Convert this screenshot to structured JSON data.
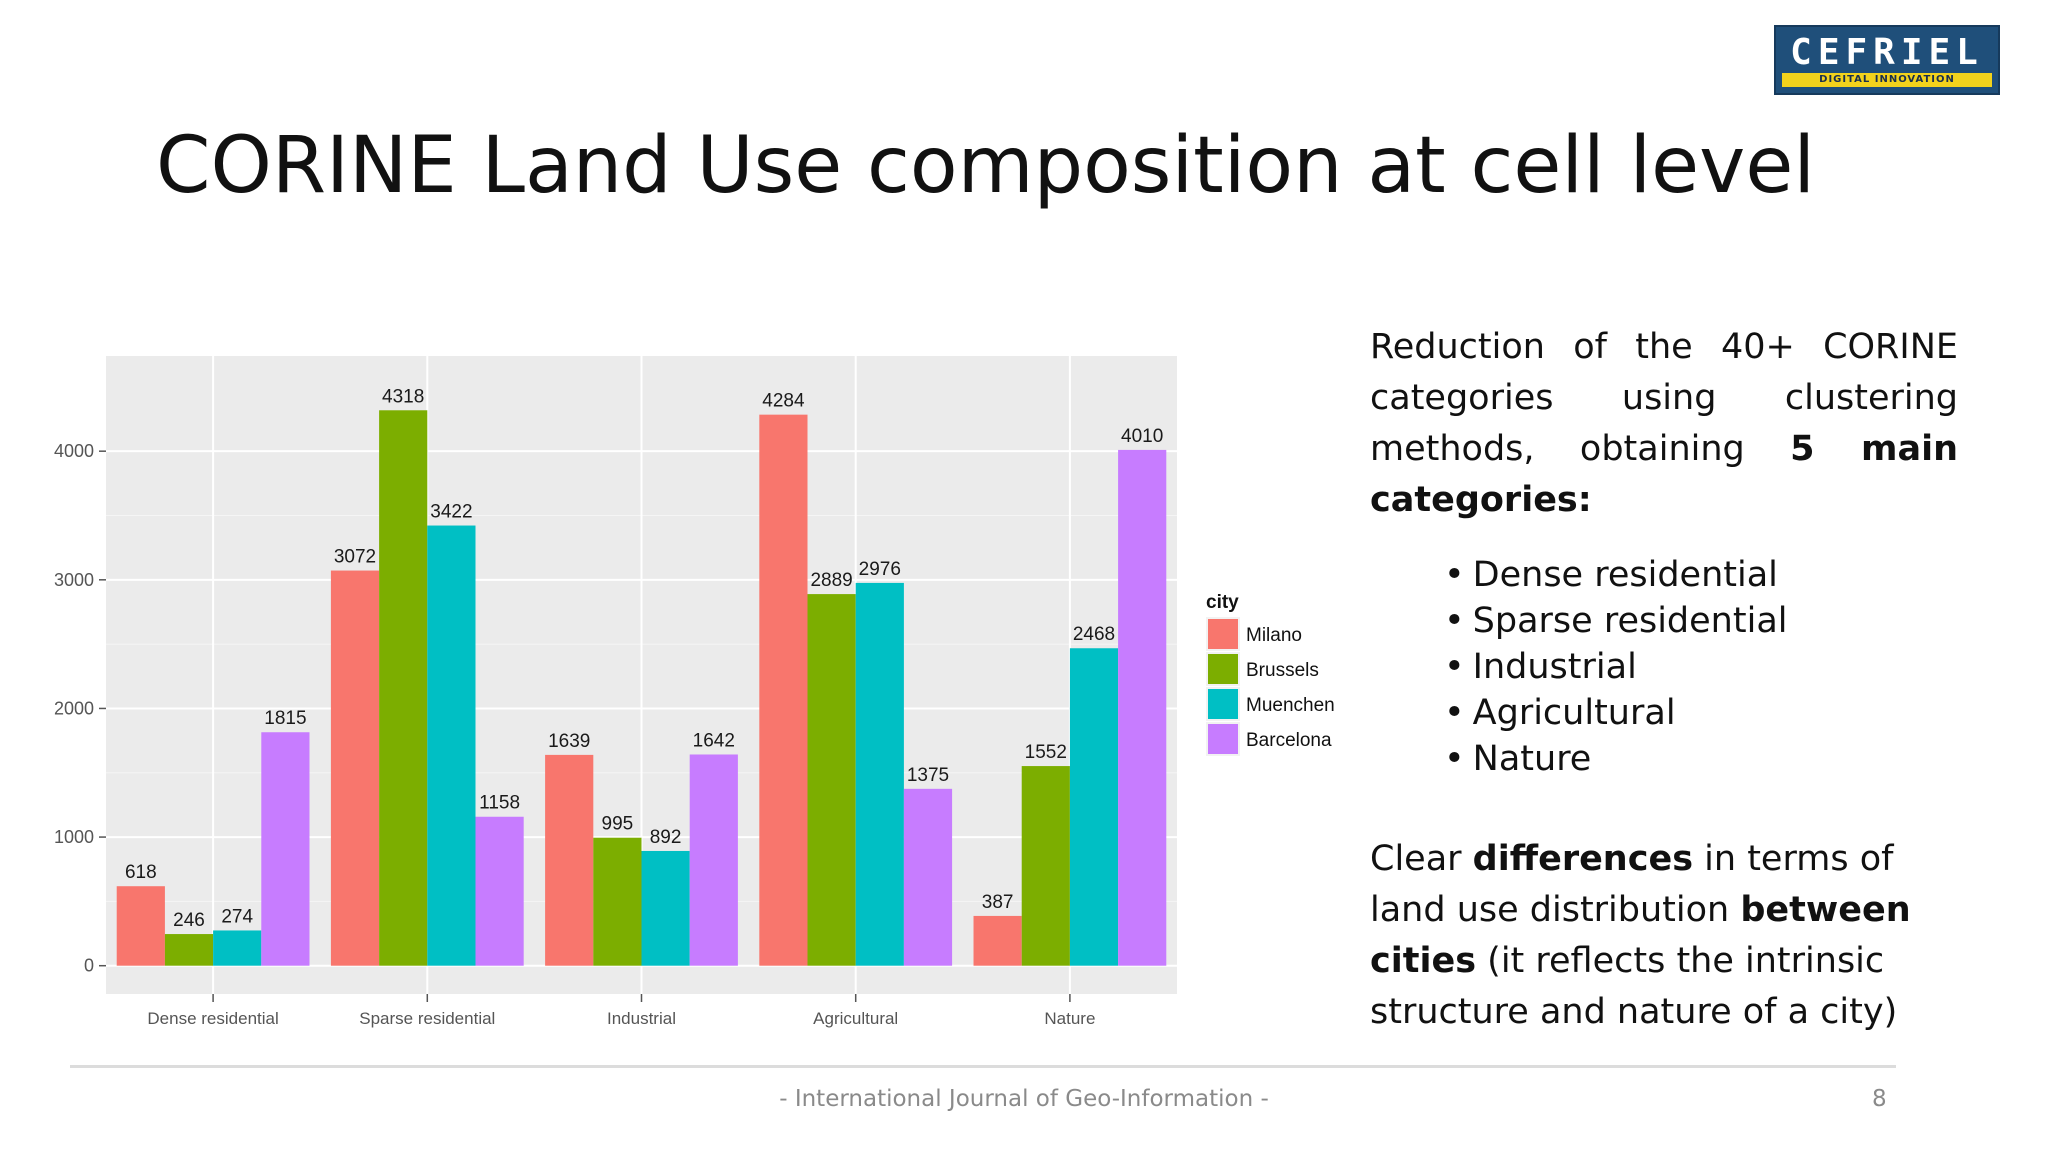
{
  "logo": {
    "text": "CEFRIEL",
    "tagline": "DIGITAL INNOVATION"
  },
  "slide": {
    "title": "CORINE Land Use composition at cell level",
    "footer": "- International Journal of Geo-Information -",
    "page_number": "8"
  },
  "right_panel": {
    "para1_lines": [
      "Reduction of the 40+ CORINE",
      "categories using clustering"
    ],
    "para1_line3_start": "methods, obtaining ",
    "para1_line3_bold": "5 main",
    "para1_line4_bold": "categories:",
    "bullets": [
      "Dense residential",
      "Sparse residential",
      "Industrial",
      "Agricultural",
      "Nature"
    ],
    "para2": {
      "t1": "Clear ",
      "b1": "differences",
      "t2": " in terms of land use distribution ",
      "b2": "between cities",
      "t3": " (it reflects the intrinsic structure and nature of a city)"
    }
  },
  "colors": {
    "Milano": "#F8766D",
    "Brussels": "#7CAE00",
    "Muenchen": "#00BFC4",
    "Barcelona": "#C77CFF",
    "panel_bg": "#EBEBEB",
    "grid": "#FFFFFF"
  },
  "chart_data": {
    "type": "bar",
    "title": "",
    "xlabel": "",
    "ylabel": "",
    "categories": [
      "Dense residential",
      "Sparse residential",
      "Industrial",
      "Agricultural",
      "Nature"
    ],
    "series": [
      {
        "name": "Milano",
        "values": [
          618,
          3072,
          1639,
          4284,
          387
        ]
      },
      {
        "name": "Brussels",
        "values": [
          246,
          4318,
          995,
          2889,
          1552
        ]
      },
      {
        "name": "Muenchen",
        "values": [
          274,
          3422,
          892,
          2976,
          2468
        ]
      },
      {
        "name": "Barcelona",
        "values": [
          1815,
          1158,
          1642,
          1375,
          4010
        ]
      }
    ],
    "y_ticks": [
      0,
      1000,
      2000,
      3000,
      4000
    ],
    "ylim": [
      -220,
      4740
    ],
    "legend_title": "city",
    "legend_position": "right",
    "grid": true
  }
}
